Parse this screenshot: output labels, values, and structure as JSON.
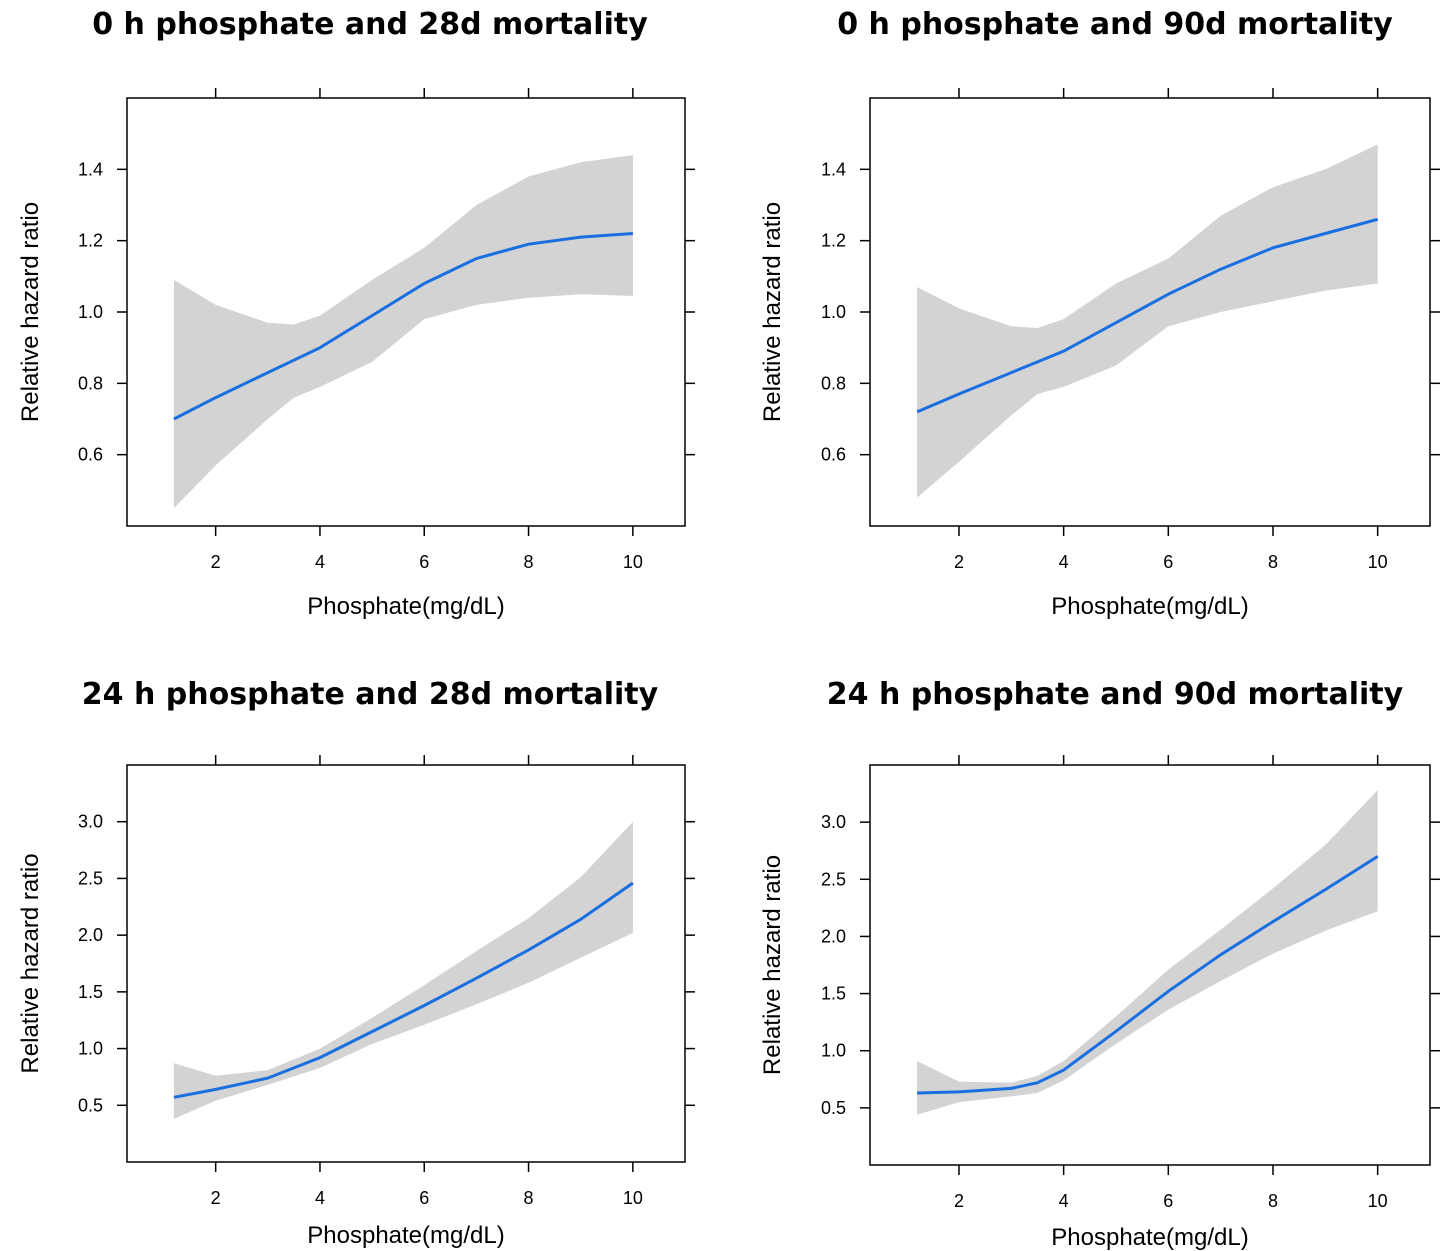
{
  "chart_data": [
    {
      "type": "line",
      "title": "0 h phosphate and 28d mortality",
      "xlabel": "Phosphate(mg/dL)",
      "ylabel": "Relative hazard ratio",
      "xlim": [
        0.3,
        11.0
      ],
      "ylim": [
        0.4,
        1.6
      ],
      "xticks": [
        2,
        4,
        6,
        8,
        10
      ],
      "yticks": [
        0.6,
        0.8,
        1.0,
        1.2,
        1.4
      ],
      "ytick_labels": [
        "0.6",
        "0.8",
        "1.0",
        "1.2",
        "1.4"
      ],
      "series": [
        {
          "x": [
            1.2,
            2,
            3,
            3.5,
            4,
            5,
            6,
            7,
            8,
            9,
            10
          ],
          "y": [
            0.7,
            0.76,
            0.83,
            0.865,
            0.9,
            0.99,
            1.08,
            1.15,
            1.19,
            1.21,
            1.22
          ],
          "lower": [
            0.45,
            0.57,
            0.7,
            0.76,
            0.79,
            0.86,
            0.98,
            1.02,
            1.04,
            1.05,
            1.045
          ],
          "upper": [
            1.09,
            1.02,
            0.97,
            0.965,
            0.99,
            1.09,
            1.18,
            1.3,
            1.38,
            1.42,
            1.44
          ]
        }
      ]
    },
    {
      "type": "line",
      "title": "0 h phosphate and 90d mortality",
      "xlabel": "Phosphate(mg/dL)",
      "ylabel": "Relative hazard ratio",
      "xlim": [
        0.3,
        11.0
      ],
      "ylim": [
        0.4,
        1.6
      ],
      "xticks": [
        2,
        4,
        6,
        8,
        10
      ],
      "yticks": [
        0.6,
        0.8,
        1.0,
        1.2,
        1.4
      ],
      "ytick_labels": [
        "0.6",
        "0.8",
        "1.0",
        "1.2",
        "1.4"
      ],
      "series": [
        {
          "x": [
            1.2,
            2,
            3,
            3.5,
            4,
            5,
            6,
            7,
            8,
            9,
            10
          ],
          "y": [
            0.72,
            0.77,
            0.83,
            0.86,
            0.89,
            0.97,
            1.05,
            1.12,
            1.18,
            1.22,
            1.26
          ],
          "lower": [
            0.48,
            0.58,
            0.71,
            0.77,
            0.79,
            0.85,
            0.96,
            1.0,
            1.03,
            1.06,
            1.08
          ],
          "upper": [
            1.07,
            1.01,
            0.96,
            0.955,
            0.98,
            1.08,
            1.15,
            1.27,
            1.35,
            1.4,
            1.47
          ]
        }
      ]
    },
    {
      "type": "line",
      "title": "24 h phosphate and 28d mortality",
      "xlabel": "Phosphate(mg/dL)",
      "ylabel": "Relative hazard ratio",
      "xlim": [
        0.3,
        11.0
      ],
      "ylim": [
        0.0,
        3.5
      ],
      "xticks": [
        2,
        4,
        6,
        8,
        10
      ],
      "yticks": [
        0.5,
        1.0,
        1.5,
        2.0,
        2.5,
        3.0
      ],
      "ytick_labels": [
        "0.5",
        "1.0",
        "1.5",
        "2.0",
        "2.5",
        "3.0"
      ],
      "series": [
        {
          "x": [
            1.2,
            2,
            3,
            4,
            5,
            6,
            7,
            8,
            9,
            10
          ],
          "y": [
            0.57,
            0.64,
            0.74,
            0.92,
            1.15,
            1.38,
            1.62,
            1.87,
            2.14,
            2.46
          ],
          "lower": [
            0.38,
            0.54,
            0.68,
            0.83,
            1.04,
            1.21,
            1.39,
            1.58,
            1.8,
            2.02
          ],
          "upper": [
            0.87,
            0.76,
            0.81,
            1.0,
            1.27,
            1.56,
            1.86,
            2.15,
            2.51,
            3.0
          ]
        }
      ]
    },
    {
      "type": "line",
      "title": "24 h phosphate and 90d mortality",
      "xlabel": "Phosphate(mg/dL)",
      "ylabel": "Relative hazard ratio",
      "xlim": [
        0.3,
        11.0
      ],
      "ylim": [
        0.0,
        3.5
      ],
      "xticks": [
        2,
        4,
        6,
        8,
        10
      ],
      "yticks": [
        0.5,
        1.0,
        1.5,
        2.0,
        2.5,
        3.0
      ],
      "ytick_labels": [
        "0.5",
        "1.0",
        "1.5",
        "2.0",
        "2.5",
        "3.0"
      ],
      "series": [
        {
          "x": [
            1.2,
            2,
            3,
            3.5,
            4,
            5,
            6,
            7,
            8,
            9,
            10
          ],
          "y": [
            0.63,
            0.64,
            0.67,
            0.72,
            0.83,
            1.17,
            1.52,
            1.84,
            2.13,
            2.41,
            2.7
          ],
          "lower": [
            0.44,
            0.55,
            0.6,
            0.63,
            0.74,
            1.06,
            1.36,
            1.61,
            1.85,
            2.05,
            2.22
          ],
          "upper": [
            0.91,
            0.73,
            0.72,
            0.78,
            0.91,
            1.3,
            1.71,
            2.06,
            2.42,
            2.8,
            3.28
          ]
        }
      ]
    }
  ]
}
